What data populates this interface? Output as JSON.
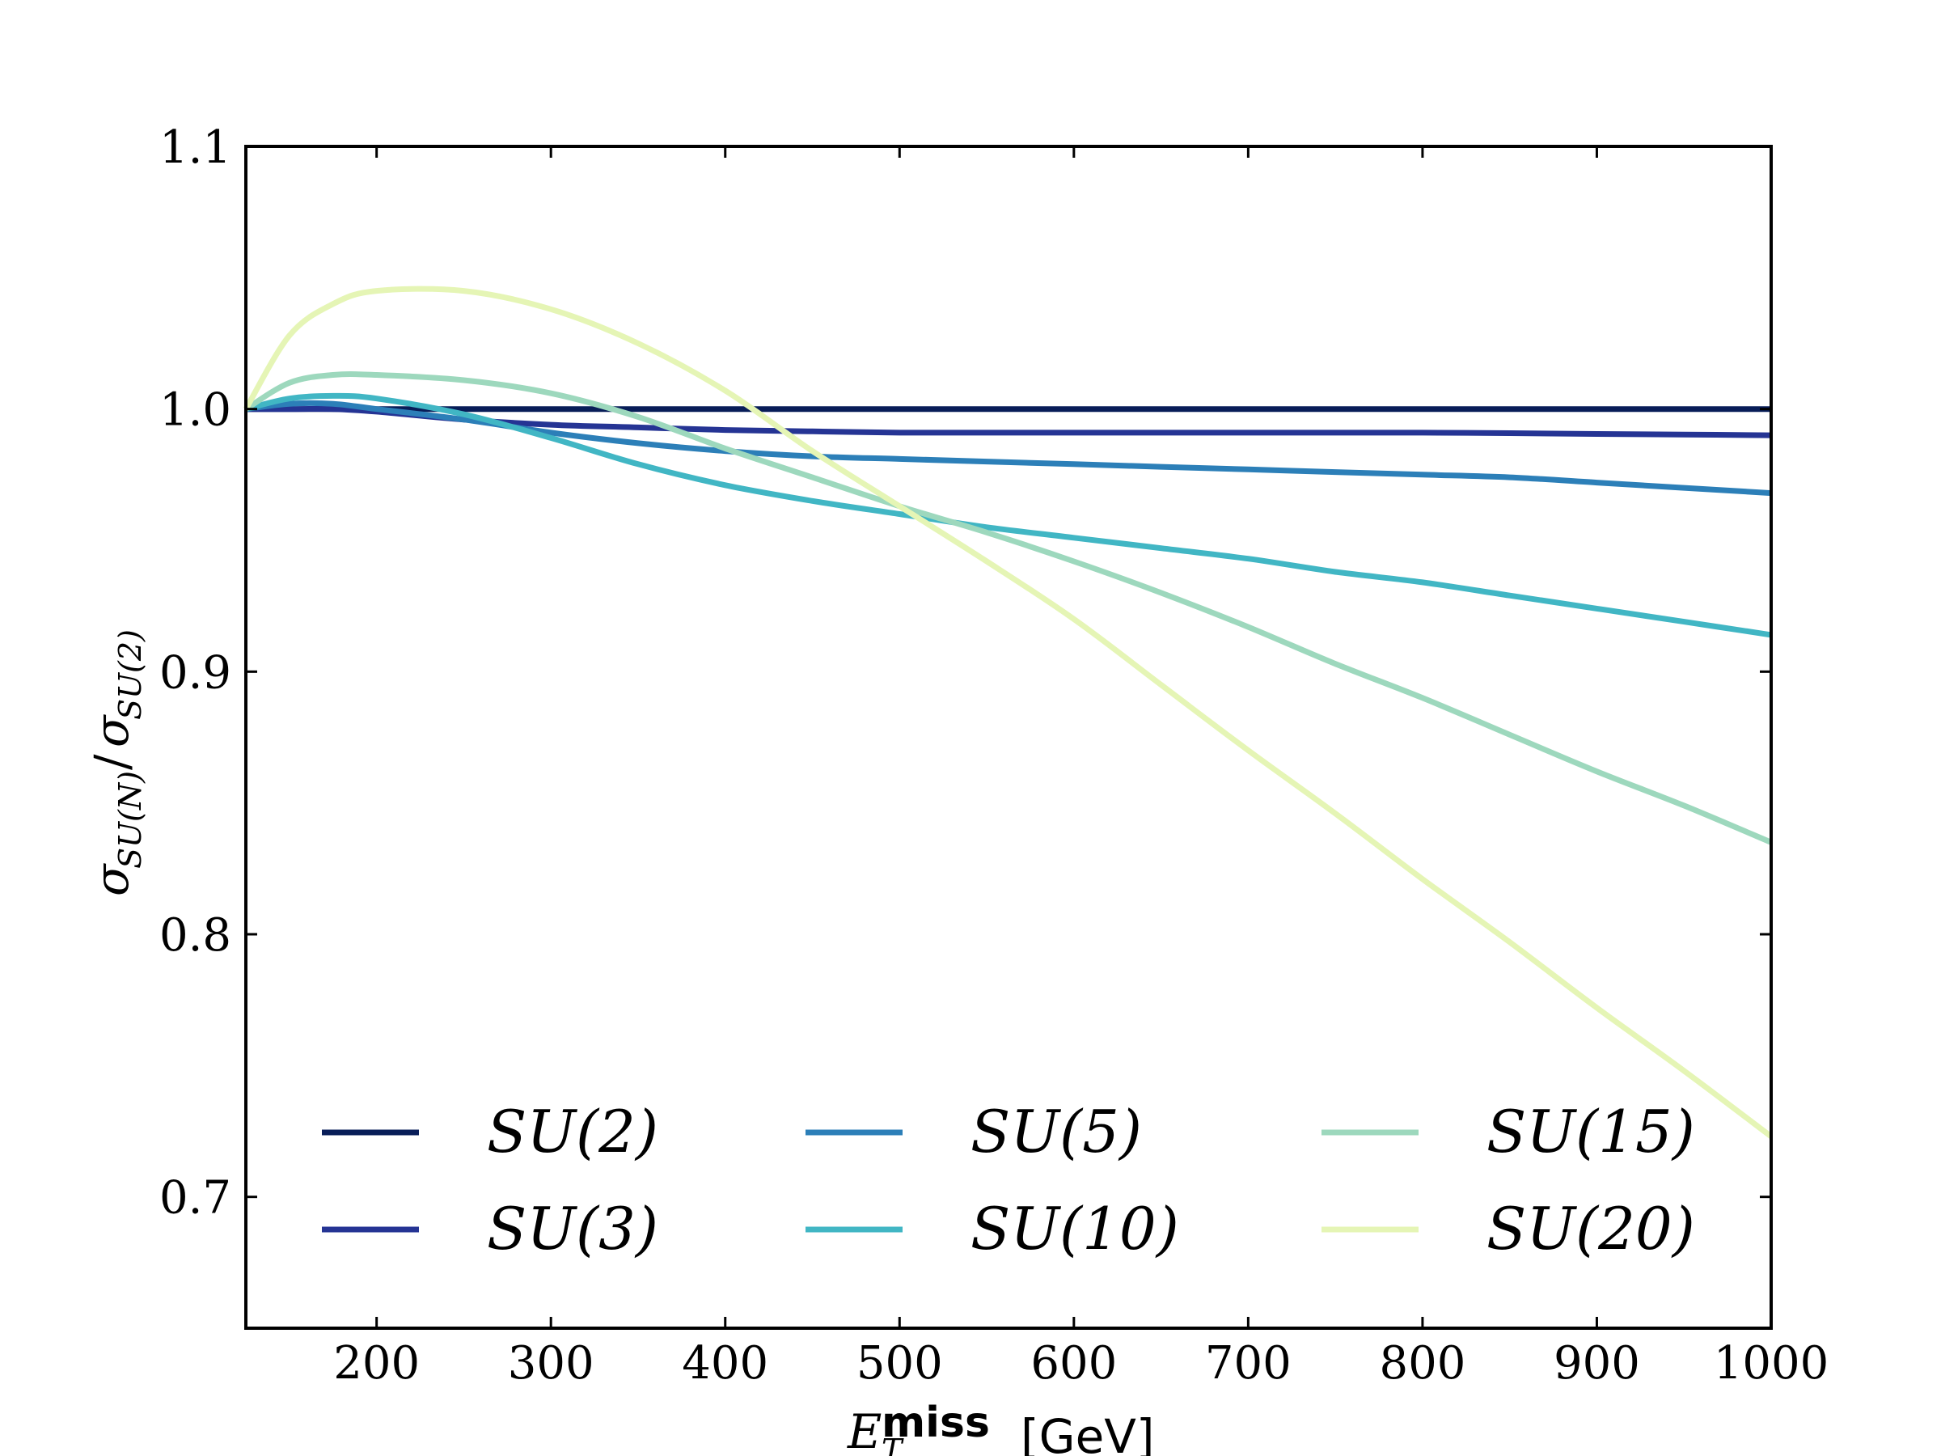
{
  "chart_data": {
    "type": "line",
    "title": "",
    "xlabel": {
      "symbol": "E",
      "subscript": "T",
      "superscript": "miss",
      "unit": "[GeV]"
    },
    "ylabel": {
      "symbol": "σ",
      "numerator_subscript": "SU(N)",
      "separator": "/",
      "denominator_symbol": "σ",
      "denominator_subscript": "SU(2)"
    },
    "xlim": [
      125,
      1000
    ],
    "ylim": [
      0.65,
      1.1
    ],
    "xticks": [
      200,
      300,
      400,
      500,
      600,
      700,
      800,
      900,
      1000
    ],
    "xtick_labels": [
      "200",
      "300",
      "400",
      "500",
      "600",
      "700",
      "800",
      "900",
      "1000"
    ],
    "yticks": [
      0.7,
      0.8,
      0.9,
      1.0,
      1.1
    ],
    "ytick_labels": [
      "0.7",
      "0.8",
      "0.9",
      "1.0",
      "1.1"
    ],
    "grid": false,
    "legend_position": "lower-center",
    "legend_columns": 3,
    "x": [
      125,
      150,
      175,
      200,
      250,
      300,
      350,
      400,
      450,
      500,
      550,
      600,
      650,
      700,
      750,
      800,
      850,
      900,
      950,
      1000
    ],
    "series": [
      {
        "name": "SU(2)",
        "color": "#081d58",
        "values": [
          1.0,
          1.0,
          1.0,
          1.0,
          1.0,
          1.0,
          1.0,
          1.0,
          1.0,
          1.0,
          1.0,
          1.0,
          1.0,
          1.0,
          1.0,
          1.0,
          1.0,
          1.0,
          1.0,
          1.0
        ]
      },
      {
        "name": "SU(3)",
        "color": "#253494",
        "values": [
          1.0,
          1.0,
          1.0,
          0.999,
          0.996,
          0.994,
          0.993,
          0.992,
          0.9915,
          0.991,
          0.991,
          0.991,
          0.991,
          0.991,
          0.991,
          0.991,
          0.9908,
          0.9905,
          0.9903,
          0.99
        ]
      },
      {
        "name": "SU(5)",
        "color": "#2c7fb8",
        "values": [
          1.0,
          1.002,
          1.002,
          1.0,
          0.996,
          0.991,
          0.987,
          0.984,
          0.982,
          0.981,
          0.98,
          0.979,
          0.978,
          0.977,
          0.976,
          0.975,
          0.974,
          0.972,
          0.97,
          0.968
        ]
      },
      {
        "name": "SU(10)",
        "color": "#41b6c4",
        "values": [
          1.0,
          1.004,
          1.005,
          1.004,
          0.998,
          0.989,
          0.979,
          0.971,
          0.965,
          0.96,
          0.955,
          0.951,
          0.947,
          0.943,
          0.938,
          0.934,
          0.929,
          0.924,
          0.919,
          0.914
        ]
      },
      {
        "name": "SU(15)",
        "color": "#9dd8bd",
        "values": [
          1.0,
          1.01,
          1.013,
          1.013,
          1.011,
          1.006,
          0.997,
          0.985,
          0.974,
          0.963,
          0.953,
          0.942,
          0.93,
          0.917,
          0.903,
          0.89,
          0.876,
          0.862,
          0.849,
          0.835
        ]
      },
      {
        "name": "SU(20)",
        "color": "#e5f5b5",
        "values": [
          1.0,
          1.028,
          1.04,
          1.045,
          1.045,
          1.038,
          1.025,
          1.007,
          0.984,
          0.963,
          0.942,
          0.92,
          0.895,
          0.87,
          0.846,
          0.821,
          0.797,
          0.772,
          0.748,
          0.723
        ]
      }
    ]
  }
}
